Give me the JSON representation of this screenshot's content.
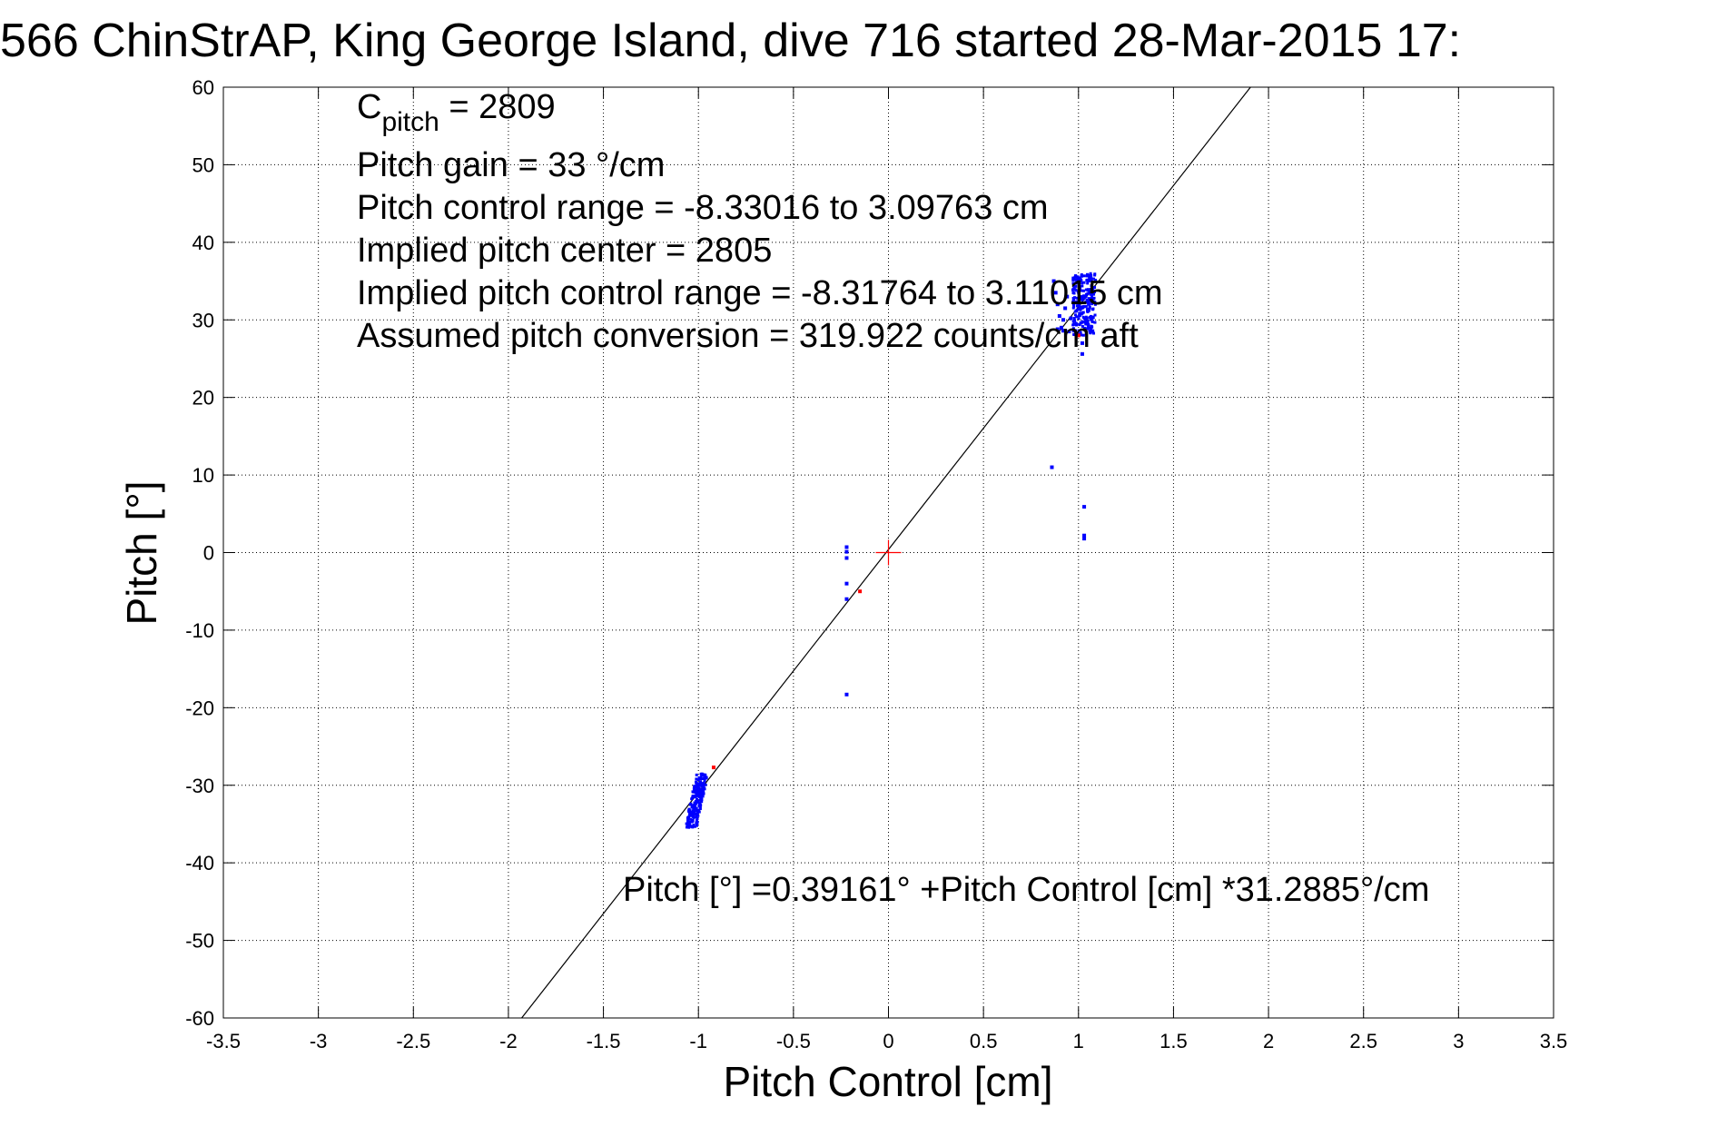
{
  "chart_data": {
    "type": "scatter",
    "title": "566 ChinStrAP, King George Island, dive 716 started 28-Mar-2015 17:",
    "xlabel": "Pitch Control [cm]",
    "ylabel": "Pitch [°]",
    "xlim": [
      -3.5,
      3.5
    ],
    "ylim": [
      -60,
      60
    ],
    "xticks": [
      -3.5,
      -3,
      -2.5,
      -2,
      -1.5,
      -1,
      -0.5,
      0,
      0.5,
      1,
      1.5,
      2,
      2.5,
      3,
      3.5
    ],
    "xtick_labels": [
      "-3.5",
      "-3",
      "-2.5",
      "-2",
      "-1.5",
      "-1",
      "-0.5",
      "0",
      "0.5",
      "1",
      "1.5",
      "2",
      "2.5",
      "3",
      "3.5"
    ],
    "yticks": [
      -60,
      -50,
      -40,
      -30,
      -20,
      -10,
      0,
      10,
      20,
      30,
      40,
      50,
      60
    ],
    "ytick_labels": [
      "-60",
      "-50",
      "-40",
      "-30",
      "-20",
      "-10",
      "0",
      "10",
      "20",
      "30",
      "40",
      "50",
      "60"
    ],
    "grid": true,
    "grid_style": "dotted",
    "colors": {
      "points": "#0000ff",
      "outliers": "#ff0000",
      "fit": "#000000",
      "center_marker": "#ff0000"
    },
    "annotations": {
      "c_pitch_main": "C",
      "c_pitch_sub": "pitch",
      "c_pitch_value": " = 2809",
      "lines": [
        "Pitch gain = 33 °/cm",
        "Pitch control range = -8.33016 to 3.09763 cm",
        "Implied pitch center = 2805",
        "Implied pitch control range = -8.31764 to 3.11015 cm",
        "Assumed pitch conversion = 319.922 counts/cm aft"
      ],
      "fit_equation": "Pitch [°] =0.39161° +Pitch Control [cm] *31.2885°/cm"
    },
    "fit_line": {
      "intercept": 0.39161,
      "slope": 31.2885
    },
    "center_marker": {
      "x": 0,
      "y": 0
    },
    "clusters": [
      {
        "name": "",
        "color": "#0000ff",
        "x_min": -1.06,
        "x_max": -0.96,
        "y_min": -35.5,
        "y_max": -28.5,
        "count": 220,
        "slope": 35
      },
      {
        "name": "",
        "color": "#0000ff",
        "x_min": 0.97,
        "x_max": 1.09,
        "y_min": 28.0,
        "y_max": 36.0,
        "count": 260,
        "slope": 0
      }
    ],
    "series": [
      {
        "name": "",
        "color": "#0000ff",
        "points": [
          [
            -0.22,
            0.7
          ],
          [
            -0.22,
            0.1
          ],
          [
            -0.22,
            -0.7
          ],
          [
            -0.22,
            -4.0
          ],
          [
            -0.22,
            -6.0
          ],
          [
            -0.22,
            -18.3
          ],
          [
            0.86,
            11.0
          ],
          [
            1.03,
            5.9
          ],
          [
            1.03,
            2.2
          ],
          [
            1.03,
            1.8
          ],
          [
            0.87,
            35.0
          ],
          [
            0.88,
            33.5
          ],
          [
            0.89,
            32.0
          ],
          [
            0.9,
            30.5
          ],
          [
            0.91,
            29.0
          ],
          [
            0.92,
            30.0
          ],
          [
            0.93,
            31.5
          ],
          [
            0.94,
            33.0
          ],
          [
            0.95,
            28.5
          ],
          [
            0.96,
            30.2
          ],
          [
            0.89,
            28.8
          ],
          [
            0.92,
            28.6
          ],
          [
            1.02,
            25.6
          ],
          [
            1.02,
            27.0
          ]
        ]
      },
      {
        "name": "",
        "color": "#ff0000",
        "points": [
          [
            -0.15,
            -5.0
          ],
          [
            -0.92,
            -27.7
          ],
          [
            1.0,
            28.0
          ]
        ]
      }
    ]
  }
}
